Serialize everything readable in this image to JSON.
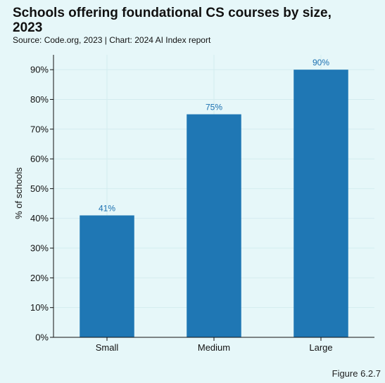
{
  "header": {
    "title": "Schools offering foundational CS courses by size, 2023",
    "source": "Source: Code.org, 2023 | Chart: 2024 AI Index report",
    "figure": "Figure 6.2.7"
  },
  "chart_data": {
    "type": "bar",
    "categories": [
      "Small",
      "Medium",
      "Large"
    ],
    "values": [
      41,
      75,
      90
    ],
    "value_labels": [
      "41%",
      "75%",
      "90%"
    ],
    "title": "Schools offering foundational CS courses by size, 2023",
    "xlabel": "",
    "ylabel": "% of schools",
    "ylim": [
      0,
      95
    ],
    "yticks": [
      0,
      10,
      20,
      30,
      40,
      50,
      60,
      70,
      80,
      90
    ],
    "ytick_labels": [
      "0%",
      "10%",
      "20%",
      "30%",
      "40%",
      "50%",
      "60%",
      "70%",
      "80%",
      "90%"
    ],
    "grid": true,
    "colors": {
      "bar": "#1f77b4",
      "label": "#1a6fb0",
      "background": "#e6f7f9",
      "grid": "#d3ecef"
    }
  }
}
